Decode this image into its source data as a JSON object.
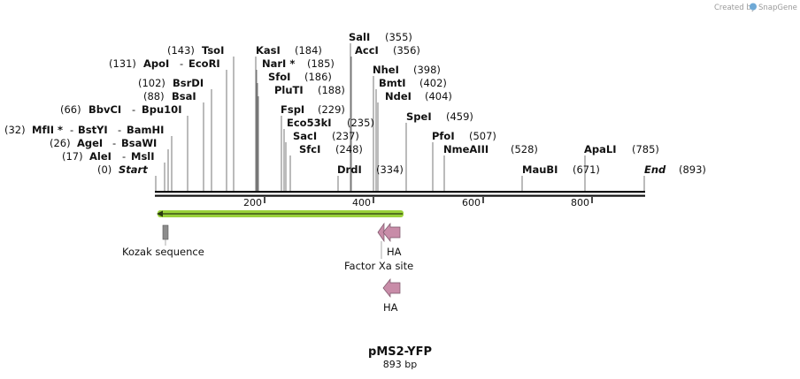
{
  "credit": {
    "prefix": "Created by",
    "app": "SnapGene"
  },
  "title": "pMS2-YFP",
  "subtitle": "893 bp",
  "scale_ticks": [
    "200",
    "400",
    "600",
    "800"
  ],
  "sites": [
    {
      "pos": "(32)",
      "name": "MfII *",
      "extra1": "BstYI",
      "extra2": "BamHI"
    },
    {
      "pos": "(26)",
      "name": "AgeI",
      "extra1": "BsaWI"
    },
    {
      "pos": "(17)",
      "name": "AleI",
      "extra1": "MslI"
    },
    {
      "pos": "(0)",
      "name": "Start"
    },
    {
      "pos": "(66)",
      "name": "BbvCI",
      "extra1": "Bpu10I"
    },
    {
      "pos": "(88)",
      "name": "BsaI"
    },
    {
      "pos": "(102)",
      "name": "BsrDI"
    },
    {
      "pos": "(131)",
      "name": "ApoI",
      "extra1": "EcoRI"
    },
    {
      "pos": "(143)",
      "name": "TsoI"
    },
    {
      "pos": "(184)",
      "name": "KasI"
    },
    {
      "pos": "(185)",
      "name": "NarI *"
    },
    {
      "pos": "(186)",
      "name": "SfoI"
    },
    {
      "pos": "(188)",
      "name": "PluTI"
    },
    {
      "pos": "(229)",
      "name": "FspI"
    },
    {
      "pos": "(235)",
      "name": "Eco53kI"
    },
    {
      "pos": "(237)",
      "name": "SacI"
    },
    {
      "pos": "(248)",
      "name": "SfcI"
    },
    {
      "pos": "(355)",
      "name": "SalI"
    },
    {
      "pos": "(356)",
      "name": "AccI"
    },
    {
      "pos": "(334)",
      "name": "DrdI"
    },
    {
      "pos": "(398)",
      "name": "NheI"
    },
    {
      "pos": "(402)",
      "name": "BmtI"
    },
    {
      "pos": "(404)",
      "name": "NdeI"
    },
    {
      "pos": "(459)",
      "name": "SpeI"
    },
    {
      "pos": "(507)",
      "name": "PfoI"
    },
    {
      "pos": "(528)",
      "name": "NmeAIII"
    },
    {
      "pos": "(671)",
      "name": "MauBI"
    },
    {
      "pos": "(785)",
      "name": "ApaLI"
    },
    {
      "pos": "(893)",
      "name": "End"
    }
  ],
  "features": [
    {
      "name": "Kozak sequence",
      "color": "#8c8c8c"
    },
    {
      "name": "HA",
      "color": "#c88ca8"
    },
    {
      "name": "Factor Xa site",
      "color": "#c88ca8"
    },
    {
      "name": "HA",
      "color": "#c88ca8"
    }
  ],
  "orf_color": "#9ad23a"
}
